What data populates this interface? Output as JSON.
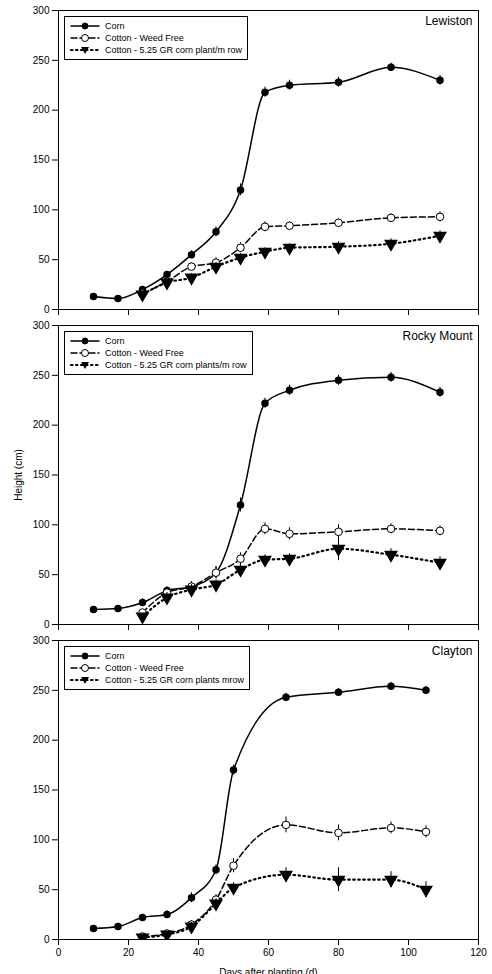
{
  "chart_data": [
    {
      "type": "line",
      "annotations": [
        "Lewiston"
      ],
      "legend": "upper left",
      "tick_labels": "y",
      "xlim": [
        0,
        120
      ],
      "xticks": [
        0,
        20,
        40,
        60,
        80,
        100,
        120
      ],
      "ylim": [
        0,
        300
      ],
      "yticks": [
        0,
        50,
        100,
        150,
        200,
        250,
        300
      ],
      "series": [
        {
          "name": "Corn",
          "color": "black",
          "marker": "circle",
          "line_style": "solid",
          "x": [
            10,
            17,
            24,
            31,
            38,
            45,
            52,
            59,
            66,
            80,
            95,
            109
          ],
          "values": [
            13,
            11,
            20,
            35,
            55,
            78,
            120,
            218,
            225,
            228,
            243,
            230
          ],
          "yerr": [
            2,
            2,
            3,
            3,
            4,
            5,
            6,
            5,
            5,
            5,
            4,
            5
          ]
        },
        {
          "name": "Cotton - Weed Free",
          "color": "black",
          "marker": "open_circle",
          "line_style": "dashed",
          "x": [
            24,
            31,
            38,
            45,
            52,
            59,
            66,
            80,
            95,
            109
          ],
          "values": [
            16,
            28,
            43,
            47,
            62,
            83,
            84,
            87,
            92,
            93
          ],
          "yerr": [
            3,
            4,
            4,
            5,
            5,
            5,
            4,
            4,
            4,
            5
          ]
        },
        {
          "name": "Cotton - 5.25 GR corn plant/m row",
          "color": "black",
          "marker": "triangle_down",
          "line_style": "dotted",
          "x": [
            24,
            31,
            38,
            45,
            52,
            59,
            66,
            80,
            95,
            109
          ],
          "values": [
            15,
            27,
            32,
            43,
            52,
            58,
            62,
            63,
            66,
            74
          ],
          "yerr": [
            3,
            4,
            4,
            4,
            4,
            4,
            4,
            5,
            5,
            5
          ]
        }
      ]
    },
    {
      "type": "line",
      "annotations": [
        "Rocky Mount"
      ],
      "legend": "upper left",
      "tick_labels": "y",
      "ylabel": "Height (cm)",
      "xlim": [
        0,
        120
      ],
      "xticks": [
        0,
        20,
        40,
        60,
        80,
        100,
        120
      ],
      "ylim": [
        0,
        300
      ],
      "yticks": [
        0,
        50,
        100,
        150,
        200,
        250,
        300
      ],
      "series": [
        {
          "name": "Corn",
          "color": "black",
          "marker": "circle",
          "line_style": "solid",
          "x": [
            10,
            17,
            24,
            31,
            38,
            45,
            52,
            59,
            66,
            80,
            95,
            109
          ],
          "values": [
            15,
            16,
            22,
            34,
            38,
            52,
            120,
            222,
            235,
            245,
            248,
            233
          ],
          "yerr": [
            3,
            3,
            4,
            4,
            5,
            6,
            7,
            5,
            5,
            5,
            5,
            5
          ]
        },
        {
          "name": "Cotton - Weed Free",
          "color": "black",
          "marker": "open_circle",
          "line_style": "dashed",
          "x": [
            24,
            31,
            38,
            45,
            52,
            59,
            66,
            80,
            95,
            109
          ],
          "values": [
            12,
            32,
            38,
            52,
            66,
            96,
            91,
            93,
            96,
            94
          ],
          "yerr": [
            3,
            5,
            5,
            6,
            6,
            6,
            6,
            7,
            5,
            5
          ]
        },
        {
          "name": "Cotton - 5.25 GR corn plants/m row",
          "color": "black",
          "marker": "triangle_down",
          "line_style": "dotted",
          "x": [
            24,
            31,
            38,
            45,
            52,
            59,
            66,
            80,
            95,
            109
          ],
          "values": [
            8,
            27,
            35,
            40,
            55,
            65,
            66,
            76,
            70,
            62
          ],
          "yerr": [
            3,
            5,
            5,
            5,
            5,
            5,
            5,
            12,
            6,
            6
          ]
        }
      ]
    },
    {
      "type": "line",
      "annotations": [
        "Clayton"
      ],
      "legend": "upper left",
      "xlabel": "Days after planting (d)",
      "xlim": [
        0,
        120
      ],
      "xticks": [
        0,
        20,
        40,
        60,
        80,
        100,
        120
      ],
      "ylim": [
        0,
        300
      ],
      "yticks": [
        0,
        50,
        100,
        150,
        200,
        250,
        300
      ],
      "series": [
        {
          "name": "Corn",
          "color": "black",
          "marker": "circle",
          "line_style": "solid",
          "x": [
            10,
            17,
            24,
            31,
            38,
            45,
            50,
            65,
            80,
            95,
            105
          ],
          "values": [
            11,
            13,
            22,
            25,
            42,
            70,
            170,
            243,
            248,
            254,
            250
          ],
          "yerr": [
            2,
            3,
            3,
            4,
            5,
            5,
            5,
            4,
            4,
            4,
            4
          ]
        },
        {
          "name": "Cotton - Weed Free",
          "color": "black",
          "marker": "open_circle",
          "line_style": "dashed",
          "x": [
            24,
            31,
            38,
            45,
            50,
            65,
            80,
            95,
            105
          ],
          "values": [
            3,
            6,
            15,
            40,
            74,
            115,
            107,
            112,
            108
          ],
          "yerr": [
            2,
            3,
            4,
            5,
            7,
            8,
            8,
            6,
            6
          ]
        },
        {
          "name": "Cotton - 5.25 GR corn plants mrow",
          "color": "black",
          "marker": "triangle_down",
          "line_style": "dotted",
          "x": [
            24,
            31,
            38,
            45,
            50,
            65,
            80,
            95,
            105
          ],
          "values": [
            2,
            5,
            13,
            36,
            52,
            65,
            60,
            60,
            50
          ],
          "yerr": [
            2,
            3,
            4,
            5,
            5,
            7,
            12,
            8,
            8
          ]
        }
      ]
    }
  ]
}
